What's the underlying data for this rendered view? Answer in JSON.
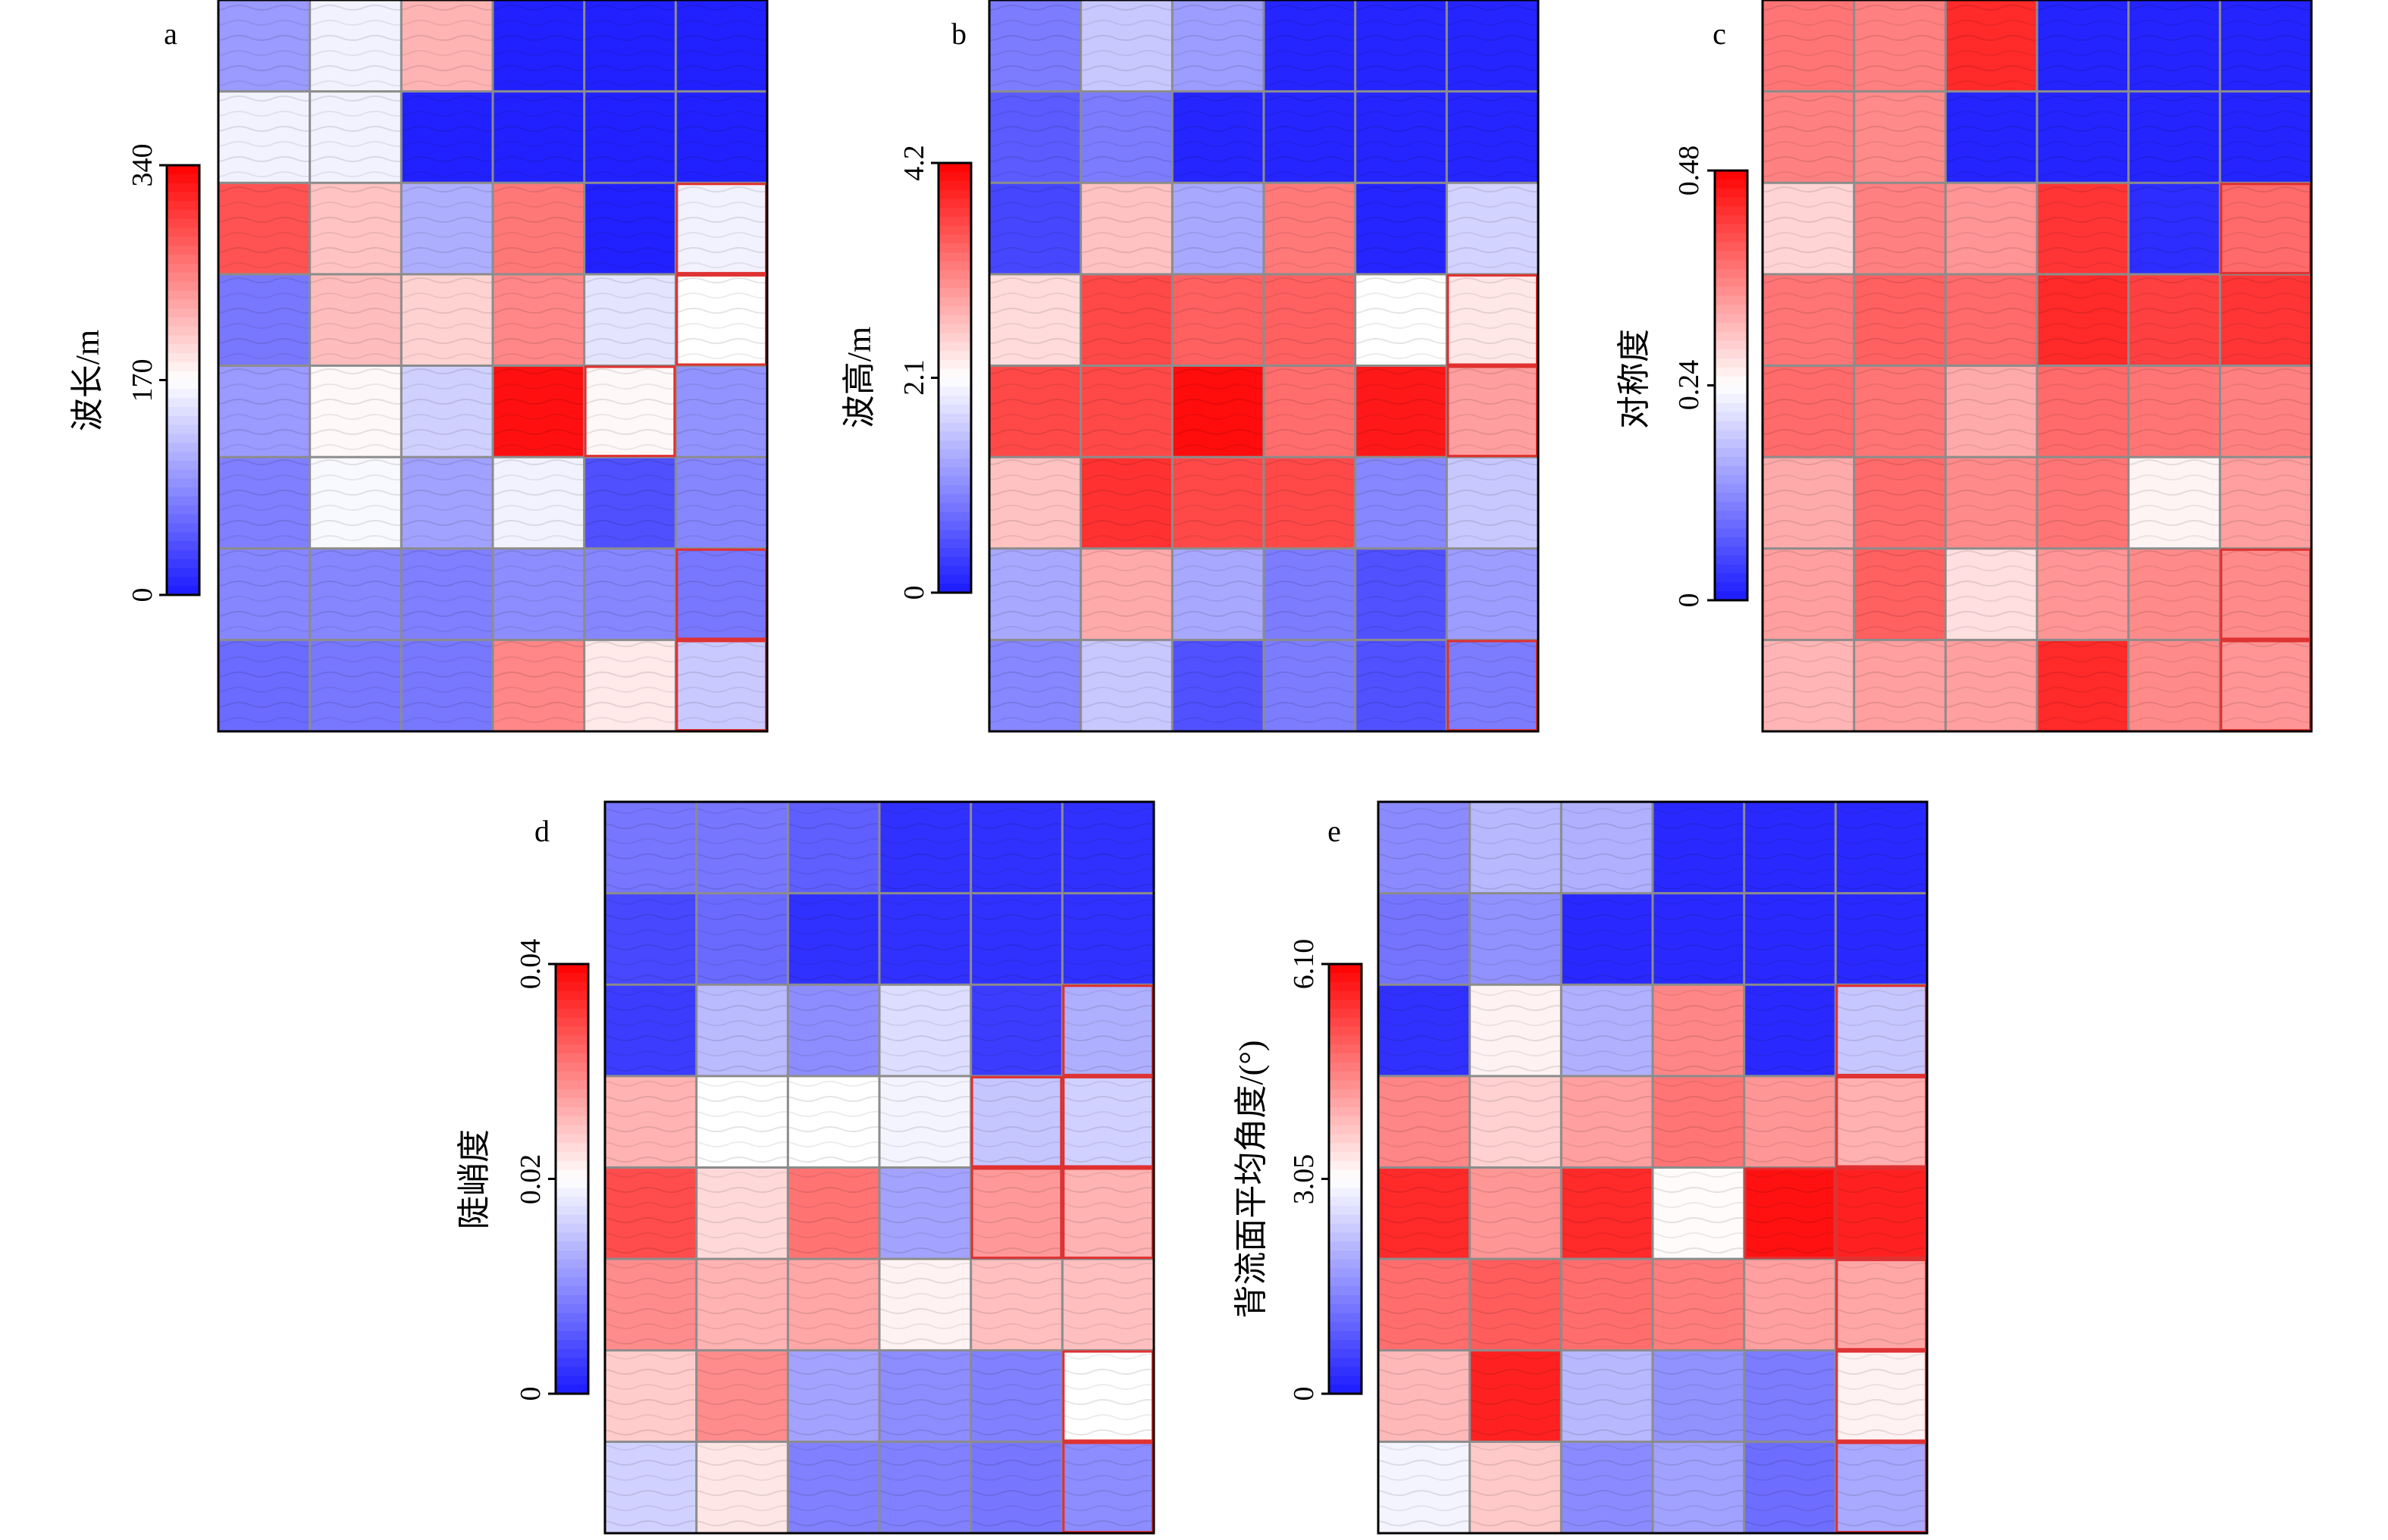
{
  "figure": {
    "panels": [
      {
        "letter": "a",
        "ylabel": "波长/m",
        "ticks": [
          "0",
          "170",
          "340"
        ]
      },
      {
        "letter": "b",
        "ylabel": "波高/m",
        "ticks": [
          "0",
          "2.1",
          "4.2"
        ]
      },
      {
        "letter": "c",
        "ylabel": "对称度",
        "ticks": [
          "0",
          "0.24",
          "0.48"
        ]
      },
      {
        "letter": "d",
        "ylabel": "陡峭度",
        "ticks": [
          "0",
          "0.02",
          "0.04"
        ]
      },
      {
        "letter": "e",
        "ylabel": "背流面平均角度/(°)",
        "ticks": [
          "0",
          "3.05",
          "6.10"
        ]
      }
    ]
  },
  "colors": {
    "low": "#1a1aff",
    "mid": "#ffffff",
    "high": "#ff0000",
    "grid": "#8c8c8c",
    "highlight": "#e03030"
  },
  "chart_data": [
    {
      "type": "heatmap",
      "label": "a",
      "ylabel": "波长/m",
      "range": [
        0,
        340
      ],
      "colorbar_ticks": [
        0,
        170,
        340
      ],
      "rows": 8,
      "cols": 6,
      "values": [
        [
          95,
          160,
          220,
          5,
          5,
          5
        ],
        [
          160,
          160,
          5,
          5,
          5,
          5
        ],
        [
          285,
          210,
          110,
          260,
          5,
          160
        ],
        [
          70,
          215,
          200,
          250,
          150,
          170
        ],
        [
          95,
          175,
          135,
          330,
          175,
          90
        ],
        [
          75,
          165,
          100,
          160,
          40,
          80
        ],
        [
          80,
          80,
          75,
          85,
          80,
          70
        ],
        [
          60,
          70,
          70,
          250,
          185,
          130
        ]
      ],
      "highlighted_cells": [
        [
          2,
          5
        ],
        [
          3,
          5
        ],
        [
          4,
          4
        ],
        [
          6,
          5
        ],
        [
          7,
          5
        ]
      ]
    },
    {
      "type": "heatmap",
      "label": "b",
      "ylabel": "波高/m",
      "range": [
        0,
        4.2
      ],
      "colorbar_ticks": [
        0,
        2.1,
        4.2
      ],
      "rows": 8,
      "cols": 6,
      "values": [
        [
          0.9,
          1.6,
          1.2,
          0.1,
          0.1,
          0.1
        ],
        [
          0.6,
          0.9,
          0.1,
          0.1,
          0.1,
          0.1
        ],
        [
          0.4,
          2.6,
          1.3,
          3.2,
          0.1,
          1.7
        ],
        [
          2.4,
          3.6,
          3.4,
          3.4,
          2.1,
          2.3
        ],
        [
          3.6,
          3.6,
          4.1,
          3.3,
          4.0,
          2.9
        ],
        [
          2.6,
          3.8,
          3.6,
          3.6,
          1.0,
          1.6
        ],
        [
          1.3,
          2.8,
          1.3,
          0.9,
          0.5,
          1.2
        ],
        [
          1.0,
          1.6,
          0.5,
          0.9,
          0.5,
          0.9
        ]
      ],
      "highlighted_cells": [
        [
          3,
          5
        ],
        [
          4,
          5
        ],
        [
          7,
          5
        ]
      ]
    },
    {
      "type": "heatmap",
      "label": "c",
      "ylabel": "对称度",
      "range": [
        0,
        0.48
      ],
      "colorbar_ticks": [
        0,
        0.24,
        0.48
      ],
      "rows": 8,
      "cols": 6,
      "values": [
        [
          0.37,
          0.36,
          0.44,
          0.01,
          0.01,
          0.01
        ],
        [
          0.36,
          0.35,
          0.01,
          0.01,
          0.01,
          0.01
        ],
        [
          0.28,
          0.36,
          0.34,
          0.43,
          0.02,
          0.38
        ],
        [
          0.37,
          0.39,
          0.38,
          0.44,
          0.42,
          0.43
        ],
        [
          0.38,
          0.37,
          0.32,
          0.38,
          0.37,
          0.36
        ],
        [
          0.32,
          0.38,
          0.35,
          0.37,
          0.25,
          0.33
        ],
        [
          0.33,
          0.39,
          0.27,
          0.34,
          0.35,
          0.35
        ],
        [
          0.31,
          0.33,
          0.33,
          0.44,
          0.35,
          0.34
        ]
      ],
      "highlighted_cells": [
        [
          2,
          5
        ],
        [
          6,
          5
        ],
        [
          7,
          5
        ]
      ]
    },
    {
      "type": "heatmap",
      "label": "d",
      "ylabel": "陡峭度",
      "range": [
        0,
        0.04
      ],
      "colorbar_ticks": [
        0,
        0.02,
        0.04
      ],
      "rows": 8,
      "cols": 6,
      "values": [
        [
          0.008,
          0.008,
          0.006,
          0.002,
          0.002,
          0.002
        ],
        [
          0.004,
          0.007,
          0.002,
          0.002,
          0.002,
          0.002
        ],
        [
          0.003,
          0.014,
          0.01,
          0.017,
          0.003,
          0.013
        ],
        [
          0.026,
          0.02,
          0.02,
          0.019,
          0.015,
          0.016
        ],
        [
          0.034,
          0.023,
          0.031,
          0.012,
          0.028,
          0.026
        ],
        [
          0.029,
          0.026,
          0.027,
          0.021,
          0.025,
          0.025
        ],
        [
          0.024,
          0.029,
          0.012,
          0.01,
          0.009,
          0.02
        ],
        [
          0.016,
          0.022,
          0.009,
          0.009,
          0.008,
          0.01
        ]
      ],
      "highlighted_cells": [
        [
          2,
          5
        ],
        [
          3,
          4
        ],
        [
          3,
          5
        ],
        [
          4,
          4
        ],
        [
          4,
          5
        ],
        [
          6,
          5
        ],
        [
          7,
          5
        ]
      ]
    },
    {
      "type": "heatmap",
      "label": "e",
      "ylabel": "背流面平均角度/(°)",
      "range": [
        0,
        6.1
      ],
      "colorbar_ticks": [
        0,
        3.05,
        6.1
      ],
      "rows": 8,
      "cols": 6,
      "values": [
        [
          1.5,
          2.1,
          2.0,
          0.2,
          0.2,
          0.2
        ],
        [
          1.2,
          1.6,
          0.2,
          0.2,
          0.2,
          0.2
        ],
        [
          0.3,
          3.2,
          2.0,
          4.5,
          0.2,
          2.3
        ],
        [
          4.5,
          3.6,
          4.2,
          4.7,
          4.3,
          4.0
        ],
        [
          5.6,
          4.3,
          5.6,
          3.1,
          5.9,
          5.7
        ],
        [
          4.8,
          5.0,
          4.8,
          4.6,
          4.2,
          4.1
        ],
        [
          3.9,
          5.7,
          2.1,
          1.6,
          1.3,
          3.2
        ],
        [
          2.9,
          3.7,
          1.5,
          1.8,
          1.1,
          1.9
        ]
      ],
      "highlighted_cells": [
        [
          2,
          5
        ],
        [
          3,
          5
        ],
        [
          4,
          4
        ],
        [
          4,
          5
        ],
        [
          5,
          5
        ],
        [
          6,
          5
        ],
        [
          7,
          5
        ]
      ]
    }
  ]
}
